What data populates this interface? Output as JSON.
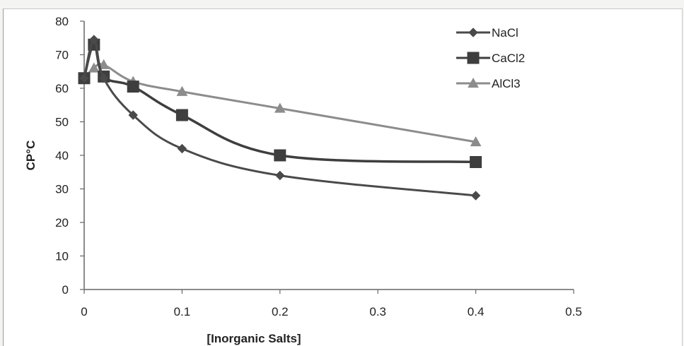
{
  "chart_data": {
    "type": "line",
    "title": "",
    "xlabel": "[Inorganic Salts]",
    "ylabel": "CP°C",
    "xlim": [
      0,
      0.5
    ],
    "ylim": [
      0,
      80
    ],
    "xticks": [
      "0",
      "0.1",
      "0.2",
      "0.3",
      "0.4",
      "0.5"
    ],
    "yticks": [
      "0",
      "10",
      "20",
      "30",
      "40",
      "50",
      "60",
      "70",
      "80"
    ],
    "grid": false,
    "legend_position": "top-right",
    "series": [
      {
        "name": "NaCl",
        "marker": "diamond",
        "color": "#4a4a4a",
        "x": [
          0,
          0.01,
          0.02,
          0.05,
          0.1,
          0.2,
          0.4
        ],
        "y": [
          63,
          74.5,
          63,
          52,
          42,
          34,
          28
        ]
      },
      {
        "name": "CaCl2",
        "marker": "square",
        "color": "#3e3e3e",
        "x": [
          0,
          0.01,
          0.02,
          0.05,
          0.1,
          0.2,
          0.4
        ],
        "y": [
          63,
          73,
          63.5,
          60.5,
          52,
          40,
          38
        ]
      },
      {
        "name": "AlCl3",
        "marker": "triangle",
        "color": "#8c8c8c",
        "x": [
          0,
          0.01,
          0.02,
          0.05,
          0.1,
          0.2,
          0.4
        ],
        "y": [
          63,
          66,
          67,
          62,
          59,
          54,
          44
        ]
      }
    ]
  }
}
